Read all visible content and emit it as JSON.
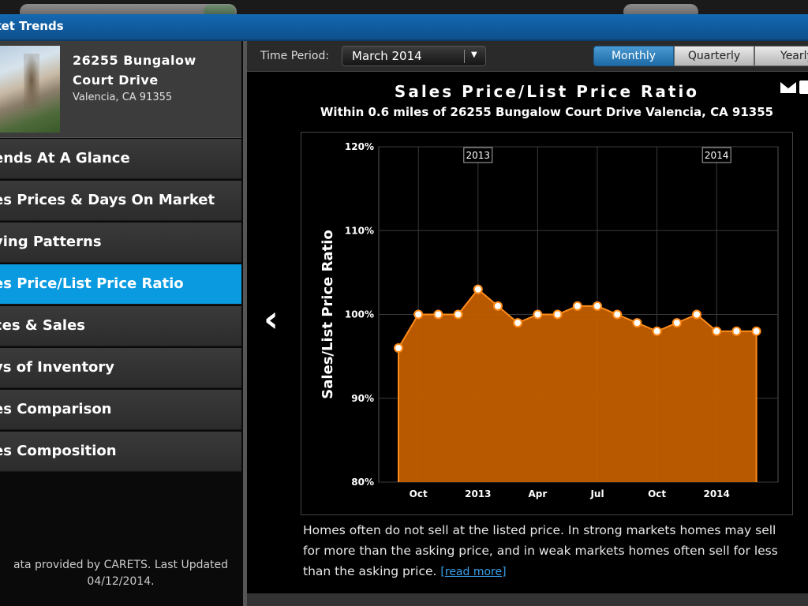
{
  "header": {
    "title": "ket Trends"
  },
  "property": {
    "address": "26255 Bungalow Court Drive",
    "city": "Valencia, CA  91355"
  },
  "nav": {
    "items": [
      {
        "label": "ends At A Glance",
        "active": false
      },
      {
        "label": "es Prices & Days On Market",
        "active": false
      },
      {
        "label": "ying Patterns",
        "active": false
      },
      {
        "label": "es Price/List Price Ratio",
        "active": true
      },
      {
        "label": "ces & Sales",
        "active": false
      },
      {
        "label": "ys of Inventory",
        "active": false
      },
      {
        "label": "es Comparison",
        "active": false
      },
      {
        "label": "es Composition",
        "active": false
      }
    ]
  },
  "footer": {
    "line1": "ata provided by CARETS.  Last Updated",
    "line2": "04/12/2014."
  },
  "controls": {
    "time_period_label": "Time Period:",
    "time_period_value": "March 2014",
    "tabs": {
      "monthly": "Monthly",
      "quarterly": "Quarterly",
      "yearly": "Yearly"
    }
  },
  "chart_data": {
    "type": "area",
    "title": "Sales Price/List Price Ratio",
    "subtitle": "Within 0.6 miles of 26255 Bungalow Court Drive Valencia, CA 91355",
    "ylabel": "Sales/List Price Ratio",
    "ylim": [
      80,
      120
    ],
    "yticks": [
      "80%",
      "90%",
      "100%",
      "110%",
      "120%"
    ],
    "year_markers": [
      "2013",
      "2014"
    ],
    "x": [
      "Sep 2012",
      "Oct 2012",
      "Nov 2012",
      "Dec 2012",
      "Jan 2013",
      "Feb 2013",
      "Mar 2013",
      "Apr 2013",
      "May 2013",
      "Jun 2013",
      "Jul 2013",
      "Aug 2013",
      "Sep 2013",
      "Oct 2013",
      "Nov 2013",
      "Dec 2013",
      "Jan 2014",
      "Feb 2014",
      "Mar 2014"
    ],
    "xtick_labels": [
      "Oct",
      "2013",
      "Apr",
      "Jul",
      "Oct",
      "2014"
    ],
    "values": [
      96,
      100,
      100,
      100,
      103,
      101,
      99,
      100,
      100,
      101,
      101,
      100,
      99,
      98,
      99,
      100,
      98,
      98,
      98
    ],
    "color": "#c25e00",
    "line_color": "#ff8c1a"
  },
  "description": {
    "text": "Homes often do not sell at the listed price. In strong markets homes may sell for more than the asking price, and in weak markets homes often sell for less than the asking price.",
    "read_more": "[read more]"
  }
}
